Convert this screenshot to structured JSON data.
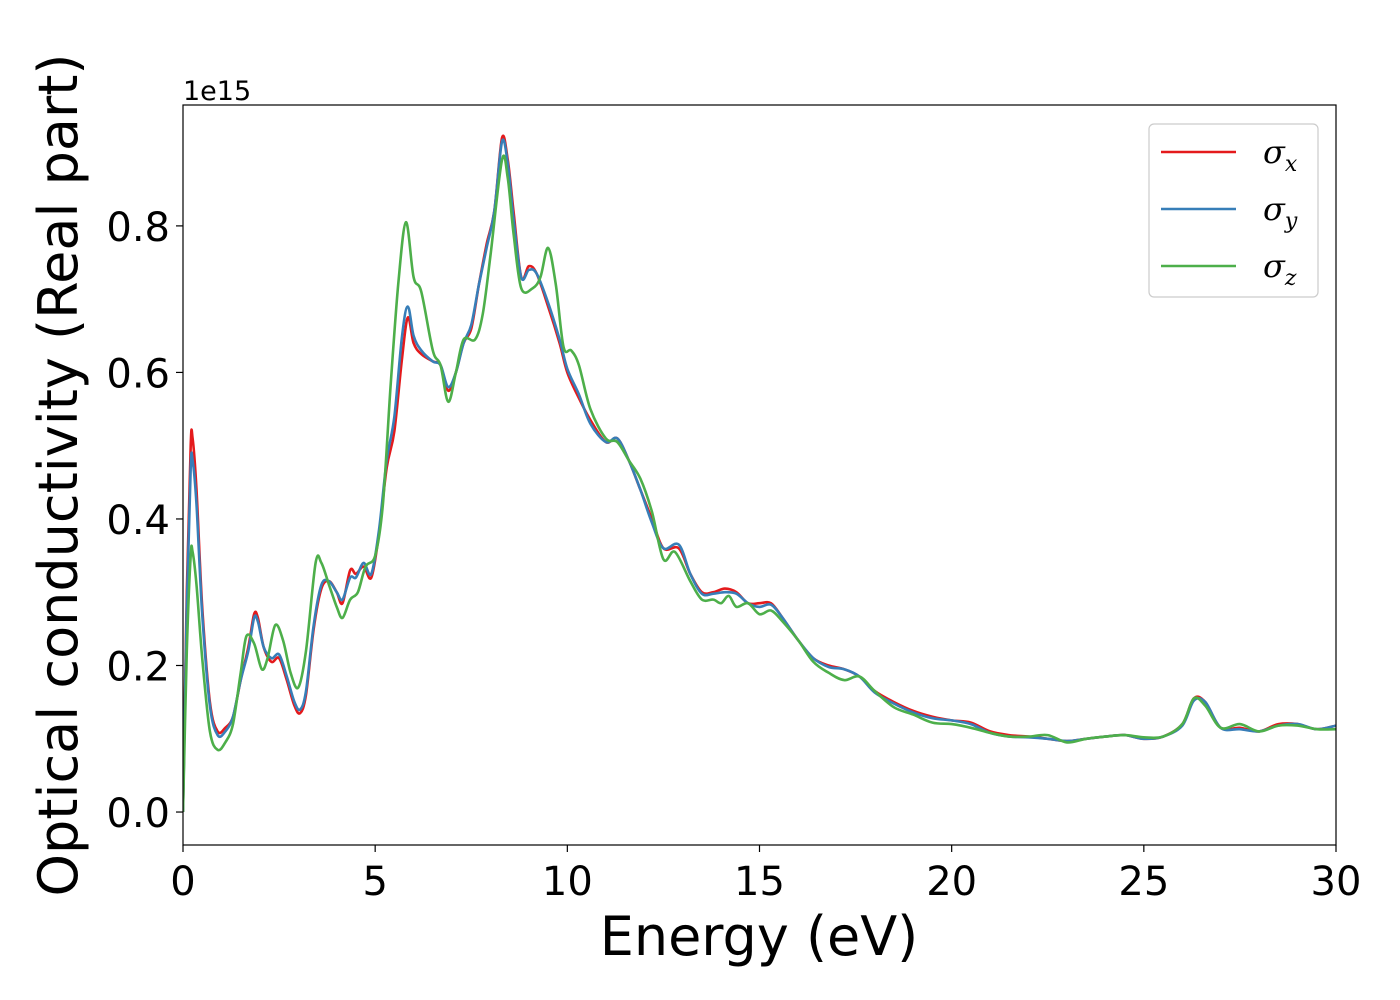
{
  "chart_data": {
    "type": "line",
    "title": "",
    "xlabel": "Energy (eV)",
    "ylabel": "Optical conductivity (Real part)",
    "y_offset_text": "1e15",
    "y_scale": 1000000000000000.0,
    "xlim": [
      0,
      30
    ],
    "ylim": [
      -0.045,
      0.965
    ],
    "xticks": [
      0,
      5,
      10,
      15,
      20,
      25,
      30
    ],
    "yticks": [
      0.0,
      0.2,
      0.4,
      0.6,
      0.8
    ],
    "xtick_labels": [
      "0",
      "5",
      "10",
      "15",
      "20",
      "25",
      "30"
    ],
    "ytick_labels": [
      "0.0",
      "0.2",
      "0.4",
      "0.6",
      "0.8"
    ],
    "grid": false,
    "legend_position": "top-right",
    "series": [
      {
        "name": "σx",
        "symbol": "σ",
        "subscript": "x",
        "color": "#e41a1c",
        "points": [
          [
            0.0,
            0.0
          ],
          [
            0.1,
            0.3
          ],
          [
            0.2,
            0.5
          ],
          [
            0.25,
            0.51
          ],
          [
            0.35,
            0.44
          ],
          [
            0.5,
            0.28
          ],
          [
            0.7,
            0.15
          ],
          [
            0.9,
            0.11
          ],
          [
            1.1,
            0.115
          ],
          [
            1.3,
            0.13
          ],
          [
            1.5,
            0.18
          ],
          [
            1.7,
            0.225
          ],
          [
            1.85,
            0.27
          ],
          [
            1.95,
            0.265
          ],
          [
            2.1,
            0.225
          ],
          [
            2.3,
            0.205
          ],
          [
            2.5,
            0.21
          ],
          [
            2.7,
            0.18
          ],
          [
            2.9,
            0.145
          ],
          [
            3.05,
            0.135
          ],
          [
            3.2,
            0.16
          ],
          [
            3.4,
            0.25
          ],
          [
            3.6,
            0.305
          ],
          [
            3.8,
            0.315
          ],
          [
            4.0,
            0.3
          ],
          [
            4.15,
            0.285
          ],
          [
            4.35,
            0.33
          ],
          [
            4.5,
            0.325
          ],
          [
            4.7,
            0.335
          ],
          [
            4.9,
            0.32
          ],
          [
            5.1,
            0.38
          ],
          [
            5.3,
            0.47
          ],
          [
            5.5,
            0.52
          ],
          [
            5.7,
            0.62
          ],
          [
            5.85,
            0.675
          ],
          [
            6.0,
            0.64
          ],
          [
            6.2,
            0.625
          ],
          [
            6.5,
            0.615
          ],
          [
            6.7,
            0.61
          ],
          [
            6.9,
            0.575
          ],
          [
            7.1,
            0.6
          ],
          [
            7.3,
            0.64
          ],
          [
            7.5,
            0.66
          ],
          [
            7.7,
            0.72
          ],
          [
            7.9,
            0.775
          ],
          [
            8.1,
            0.82
          ],
          [
            8.3,
            0.92
          ],
          [
            8.45,
            0.89
          ],
          [
            8.6,
            0.82
          ],
          [
            8.8,
            0.73
          ],
          [
            9.0,
            0.745
          ],
          [
            9.2,
            0.735
          ],
          [
            9.5,
            0.69
          ],
          [
            9.8,
            0.64
          ],
          [
            10.0,
            0.6
          ],
          [
            10.3,
            0.565
          ],
          [
            10.6,
            0.535
          ],
          [
            11.0,
            0.505
          ],
          [
            11.3,
            0.51
          ],
          [
            11.6,
            0.48
          ],
          [
            11.9,
            0.44
          ],
          [
            12.2,
            0.4
          ],
          [
            12.5,
            0.36
          ],
          [
            12.9,
            0.36
          ],
          [
            13.2,
            0.325
          ],
          [
            13.5,
            0.3
          ],
          [
            13.8,
            0.3
          ],
          [
            14.1,
            0.305
          ],
          [
            14.4,
            0.3
          ],
          [
            14.7,
            0.285
          ],
          [
            15.0,
            0.285
          ],
          [
            15.3,
            0.285
          ],
          [
            15.6,
            0.265
          ],
          [
            16.0,
            0.235
          ],
          [
            16.4,
            0.21
          ],
          [
            16.8,
            0.2
          ],
          [
            17.2,
            0.195
          ],
          [
            17.6,
            0.185
          ],
          [
            18.0,
            0.165
          ],
          [
            18.5,
            0.15
          ],
          [
            19.0,
            0.138
          ],
          [
            19.5,
            0.13
          ],
          [
            20.0,
            0.125
          ],
          [
            20.5,
            0.122
          ],
          [
            21.0,
            0.11
          ],
          [
            21.5,
            0.105
          ],
          [
            22.0,
            0.103
          ],
          [
            22.5,
            0.1
          ],
          [
            23.0,
            0.097
          ],
          [
            23.5,
            0.1
          ],
          [
            24.0,
            0.103
          ],
          [
            24.5,
            0.105
          ],
          [
            25.0,
            0.1
          ],
          [
            25.5,
            0.103
          ],
          [
            26.0,
            0.12
          ],
          [
            26.3,
            0.155
          ],
          [
            26.6,
            0.15
          ],
          [
            27.0,
            0.115
          ],
          [
            27.5,
            0.115
          ],
          [
            28.0,
            0.11
          ],
          [
            28.5,
            0.12
          ],
          [
            29.0,
            0.12
          ],
          [
            29.5,
            0.113
          ],
          [
            30.0,
            0.118
          ]
        ]
      },
      {
        "name": "σy",
        "symbol": "σ",
        "subscript": "y",
        "color": "#377eb8",
        "points": [
          [
            0.0,
            0.0
          ],
          [
            0.1,
            0.28
          ],
          [
            0.2,
            0.47
          ],
          [
            0.25,
            0.48
          ],
          [
            0.35,
            0.42
          ],
          [
            0.5,
            0.27
          ],
          [
            0.7,
            0.145
          ],
          [
            0.9,
            0.105
          ],
          [
            1.1,
            0.11
          ],
          [
            1.3,
            0.13
          ],
          [
            1.5,
            0.18
          ],
          [
            1.7,
            0.22
          ],
          [
            1.85,
            0.265
          ],
          [
            1.95,
            0.26
          ],
          [
            2.1,
            0.225
          ],
          [
            2.3,
            0.21
          ],
          [
            2.5,
            0.215
          ],
          [
            2.7,
            0.185
          ],
          [
            2.9,
            0.15
          ],
          [
            3.05,
            0.14
          ],
          [
            3.2,
            0.165
          ],
          [
            3.4,
            0.255
          ],
          [
            3.6,
            0.31
          ],
          [
            3.8,
            0.315
          ],
          [
            4.0,
            0.3
          ],
          [
            4.15,
            0.29
          ],
          [
            4.35,
            0.32
          ],
          [
            4.5,
            0.32
          ],
          [
            4.7,
            0.34
          ],
          [
            4.9,
            0.325
          ],
          [
            5.1,
            0.385
          ],
          [
            5.3,
            0.48
          ],
          [
            5.5,
            0.54
          ],
          [
            5.7,
            0.65
          ],
          [
            5.85,
            0.69
          ],
          [
            6.0,
            0.65
          ],
          [
            6.2,
            0.63
          ],
          [
            6.5,
            0.615
          ],
          [
            6.7,
            0.61
          ],
          [
            6.9,
            0.58
          ],
          [
            7.1,
            0.6
          ],
          [
            7.3,
            0.64
          ],
          [
            7.5,
            0.665
          ],
          [
            7.7,
            0.72
          ],
          [
            7.9,
            0.77
          ],
          [
            8.1,
            0.82
          ],
          [
            8.3,
            0.915
          ],
          [
            8.45,
            0.885
          ],
          [
            8.6,
            0.81
          ],
          [
            8.8,
            0.73
          ],
          [
            9.0,
            0.74
          ],
          [
            9.2,
            0.735
          ],
          [
            9.5,
            0.695
          ],
          [
            9.8,
            0.645
          ],
          [
            10.0,
            0.605
          ],
          [
            10.3,
            0.57
          ],
          [
            10.6,
            0.53
          ],
          [
            11.0,
            0.505
          ],
          [
            11.3,
            0.51
          ],
          [
            11.6,
            0.48
          ],
          [
            11.9,
            0.44
          ],
          [
            12.2,
            0.395
          ],
          [
            12.5,
            0.36
          ],
          [
            12.9,
            0.365
          ],
          [
            13.2,
            0.325
          ],
          [
            13.5,
            0.298
          ],
          [
            13.8,
            0.298
          ],
          [
            14.1,
            0.3
          ],
          [
            14.4,
            0.298
          ],
          [
            14.7,
            0.285
          ],
          [
            15.0,
            0.28
          ],
          [
            15.3,
            0.283
          ],
          [
            15.6,
            0.265
          ],
          [
            16.0,
            0.235
          ],
          [
            16.4,
            0.21
          ],
          [
            16.8,
            0.198
          ],
          [
            17.2,
            0.195
          ],
          [
            17.6,
            0.185
          ],
          [
            18.0,
            0.163
          ],
          [
            18.5,
            0.148
          ],
          [
            19.0,
            0.136
          ],
          [
            19.5,
            0.128
          ],
          [
            20.0,
            0.125
          ],
          [
            20.5,
            0.12
          ],
          [
            21.0,
            0.108
          ],
          [
            21.5,
            0.103
          ],
          [
            22.0,
            0.102
          ],
          [
            22.5,
            0.1
          ],
          [
            23.0,
            0.097
          ],
          [
            23.5,
            0.1
          ],
          [
            24.0,
            0.103
          ],
          [
            24.5,
            0.105
          ],
          [
            25.0,
            0.1
          ],
          [
            25.5,
            0.103
          ],
          [
            26.0,
            0.118
          ],
          [
            26.3,
            0.152
          ],
          [
            26.6,
            0.15
          ],
          [
            27.0,
            0.115
          ],
          [
            27.5,
            0.113
          ],
          [
            28.0,
            0.11
          ],
          [
            28.5,
            0.118
          ],
          [
            29.0,
            0.12
          ],
          [
            29.5,
            0.113
          ],
          [
            30.0,
            0.118
          ]
        ]
      },
      {
        "name": "σz",
        "symbol": "σ",
        "subscript": "z",
        "color": "#4daf4a",
        "points": [
          [
            0.0,
            0.0
          ],
          [
            0.1,
            0.22
          ],
          [
            0.2,
            0.35
          ],
          [
            0.25,
            0.355
          ],
          [
            0.35,
            0.31
          ],
          [
            0.5,
            0.21
          ],
          [
            0.7,
            0.11
          ],
          [
            0.9,
            0.085
          ],
          [
            1.1,
            0.095
          ],
          [
            1.3,
            0.12
          ],
          [
            1.5,
            0.19
          ],
          [
            1.65,
            0.24
          ],
          [
            1.85,
            0.23
          ],
          [
            2.05,
            0.195
          ],
          [
            2.2,
            0.21
          ],
          [
            2.4,
            0.255
          ],
          [
            2.6,
            0.235
          ],
          [
            2.8,
            0.19
          ],
          [
            3.0,
            0.17
          ],
          [
            3.2,
            0.22
          ],
          [
            3.45,
            0.34
          ],
          [
            3.6,
            0.34
          ],
          [
            3.8,
            0.31
          ],
          [
            4.0,
            0.28
          ],
          [
            4.15,
            0.265
          ],
          [
            4.35,
            0.29
          ],
          [
            4.55,
            0.3
          ],
          [
            4.75,
            0.335
          ],
          [
            5.0,
            0.35
          ],
          [
            5.2,
            0.42
          ],
          [
            5.4,
            0.58
          ],
          [
            5.6,
            0.72
          ],
          [
            5.8,
            0.805
          ],
          [
            6.0,
            0.73
          ],
          [
            6.2,
            0.71
          ],
          [
            6.5,
            0.63
          ],
          [
            6.7,
            0.61
          ],
          [
            6.9,
            0.56
          ],
          [
            7.1,
            0.6
          ],
          [
            7.3,
            0.645
          ],
          [
            7.6,
            0.645
          ],
          [
            7.8,
            0.68
          ],
          [
            8.0,
            0.76
          ],
          [
            8.3,
            0.89
          ],
          [
            8.45,
            0.865
          ],
          [
            8.6,
            0.79
          ],
          [
            8.8,
            0.715
          ],
          [
            9.1,
            0.715
          ],
          [
            9.3,
            0.73
          ],
          [
            9.5,
            0.77
          ],
          [
            9.7,
            0.72
          ],
          [
            9.9,
            0.635
          ],
          [
            10.1,
            0.63
          ],
          [
            10.3,
            0.61
          ],
          [
            10.6,
            0.55
          ],
          [
            11.0,
            0.51
          ],
          [
            11.3,
            0.505
          ],
          [
            11.6,
            0.48
          ],
          [
            11.9,
            0.455
          ],
          [
            12.2,
            0.41
          ],
          [
            12.5,
            0.345
          ],
          [
            12.8,
            0.355
          ],
          [
            13.2,
            0.315
          ],
          [
            13.5,
            0.29
          ],
          [
            13.8,
            0.29
          ],
          [
            14.0,
            0.285
          ],
          [
            14.2,
            0.295
          ],
          [
            14.4,
            0.28
          ],
          [
            14.7,
            0.285
          ],
          [
            15.0,
            0.27
          ],
          [
            15.3,
            0.275
          ],
          [
            15.6,
            0.26
          ],
          [
            16.0,
            0.235
          ],
          [
            16.4,
            0.205
          ],
          [
            16.8,
            0.19
          ],
          [
            17.2,
            0.18
          ],
          [
            17.6,
            0.185
          ],
          [
            18.0,
            0.165
          ],
          [
            18.5,
            0.143
          ],
          [
            19.0,
            0.133
          ],
          [
            19.5,
            0.122
          ],
          [
            20.0,
            0.12
          ],
          [
            20.5,
            0.115
          ],
          [
            21.0,
            0.108
          ],
          [
            21.5,
            0.103
          ],
          [
            22.0,
            0.103
          ],
          [
            22.5,
            0.105
          ],
          [
            23.0,
            0.095
          ],
          [
            23.5,
            0.1
          ],
          [
            24.0,
            0.103
          ],
          [
            24.5,
            0.105
          ],
          [
            25.0,
            0.102
          ],
          [
            25.5,
            0.103
          ],
          [
            26.0,
            0.12
          ],
          [
            26.3,
            0.155
          ],
          [
            26.6,
            0.145
          ],
          [
            27.0,
            0.115
          ],
          [
            27.5,
            0.12
          ],
          [
            28.0,
            0.11
          ],
          [
            28.5,
            0.118
          ],
          [
            29.0,
            0.118
          ],
          [
            29.5,
            0.113
          ],
          [
            30.0,
            0.113
          ]
        ]
      }
    ]
  }
}
